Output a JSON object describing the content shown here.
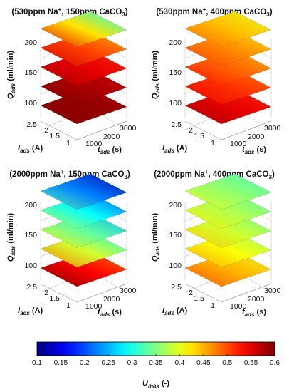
{
  "colorbar": {
    "ticks": [
      "0.1",
      "0.15",
      "0.2",
      "0.25",
      "0.3",
      "0.35",
      "0.4",
      "0.45",
      "0.5",
      "0.55",
      "0.6"
    ],
    "label_main": "U",
    "label_sub": "max",
    "label_unit": " (-)",
    "min": 0.1,
    "max": 0.6,
    "colormap": "jet"
  },
  "chart_data": [
    {
      "type": "surface3d-slices",
      "title_pre": "(530ppm Na",
      "title_sup": "+",
      "title_mid": ", 150ppm CaCO",
      "title_sub": "3",
      "title_post": ")",
      "z_axis": {
        "label": "Q",
        "sub": "ads",
        "unit": " (ml/min)",
        "ticks": [
          "100",
          "150",
          "200"
        ],
        "levels": [
          80,
          110,
          140,
          170,
          200
        ]
      },
      "x_axis": {
        "label": "t",
        "sub": "ads",
        "unit": " (s)",
        "ticks": [
          "1000",
          "2000",
          "3000"
        ],
        "range": [
          600,
          3600
        ]
      },
      "y_axis": {
        "label": "I",
        "sub": "ads",
        "unit": " (A)",
        "ticks": [
          "1",
          "1.5",
          "2",
          "2.5"
        ],
        "range": [
          1,
          2.5
        ]
      },
      "u_by_level": [
        [
          0.58,
          0.6
        ],
        [
          0.56,
          0.6
        ],
        [
          0.52,
          0.58
        ],
        [
          0.45,
          0.56
        ],
        [
          0.3,
          0.55
        ]
      ]
    },
    {
      "type": "surface3d-slices",
      "title_pre": "(530ppm Na",
      "title_sup": "+",
      "title_mid": ", 400ppm CaCO",
      "title_sub": "3",
      "title_post": ")",
      "z_axis": {
        "label": "Q",
        "sub": "ads",
        "unit": " (ml/min)",
        "ticks": [
          "100",
          "150",
          "200"
        ],
        "levels": [
          80,
          110,
          140,
          170,
          200
        ]
      },
      "x_axis": {
        "label": "t",
        "sub": "ads",
        "unit": " (s)",
        "ticks": [
          "1000",
          "2000",
          "3000"
        ],
        "range": [
          600,
          3600
        ]
      },
      "y_axis": {
        "label": "I",
        "sub": "ads",
        "unit": " (A)",
        "ticks": [
          "1",
          "1.5",
          "2",
          "2.5"
        ],
        "range": [
          1,
          2.5
        ]
      },
      "u_by_level": [
        [
          0.52,
          0.58
        ],
        [
          0.48,
          0.55
        ],
        [
          0.45,
          0.53
        ],
        [
          0.43,
          0.51
        ],
        [
          0.4,
          0.49
        ]
      ]
    },
    {
      "type": "surface3d-slices",
      "title_pre": "(2000ppm Na",
      "title_sup": "+",
      "title_mid": ", 150ppm CaCO",
      "title_sub": "3",
      "title_post": ")",
      "z_axis": {
        "label": "Q",
        "sub": "ads",
        "unit": " (ml/min)",
        "ticks": [
          "100",
          "150",
          "200"
        ],
        "levels": [
          80,
          110,
          140,
          170,
          200
        ]
      },
      "x_axis": {
        "label": "t",
        "sub": "ads",
        "unit": " (s)",
        "ticks": [
          "1000",
          "2000",
          "3000"
        ],
        "range": [
          600,
          3600
        ]
      },
      "y_axis": {
        "label": "I",
        "sub": "ads",
        "unit": " (A)",
        "ticks": [
          "1",
          "1.5",
          "2",
          "2.5"
        ],
        "range": [
          1,
          2.5
        ]
      },
      "u_by_level": [
        [
          0.48,
          0.6
        ],
        [
          0.3,
          0.48
        ],
        [
          0.25,
          0.42
        ],
        [
          0.2,
          0.38
        ],
        [
          0.12,
          0.33
        ]
      ]
    },
    {
      "type": "surface3d-slices",
      "title_pre": "(2000ppm Na",
      "title_sup": "+",
      "title_mid": ", 400ppm CaCO",
      "title_sub": "3",
      "title_post": ")",
      "z_axis": {
        "label": "Q",
        "sub": "ads",
        "unit": " (ml/min)",
        "ticks": [
          "100",
          "150",
          "200"
        ],
        "levels": [
          80,
          110,
          140,
          170,
          200
        ]
      },
      "x_axis": {
        "label": "t",
        "sub": "ads",
        "unit": " (s)",
        "ticks": [
          "1000",
          "2000",
          "3000"
        ],
        "range": [
          600,
          3600
        ]
      },
      "y_axis": {
        "label": "I",
        "sub": "ads",
        "unit": " (A)",
        "ticks": [
          "1",
          "1.5",
          "2",
          "2.5"
        ],
        "range": [
          1,
          2.5
        ]
      },
      "u_by_level": [
        [
          0.4,
          0.5
        ],
        [
          0.36,
          0.46
        ],
        [
          0.34,
          0.44
        ],
        [
          0.33,
          0.42
        ],
        [
          0.32,
          0.4
        ]
      ]
    }
  ]
}
